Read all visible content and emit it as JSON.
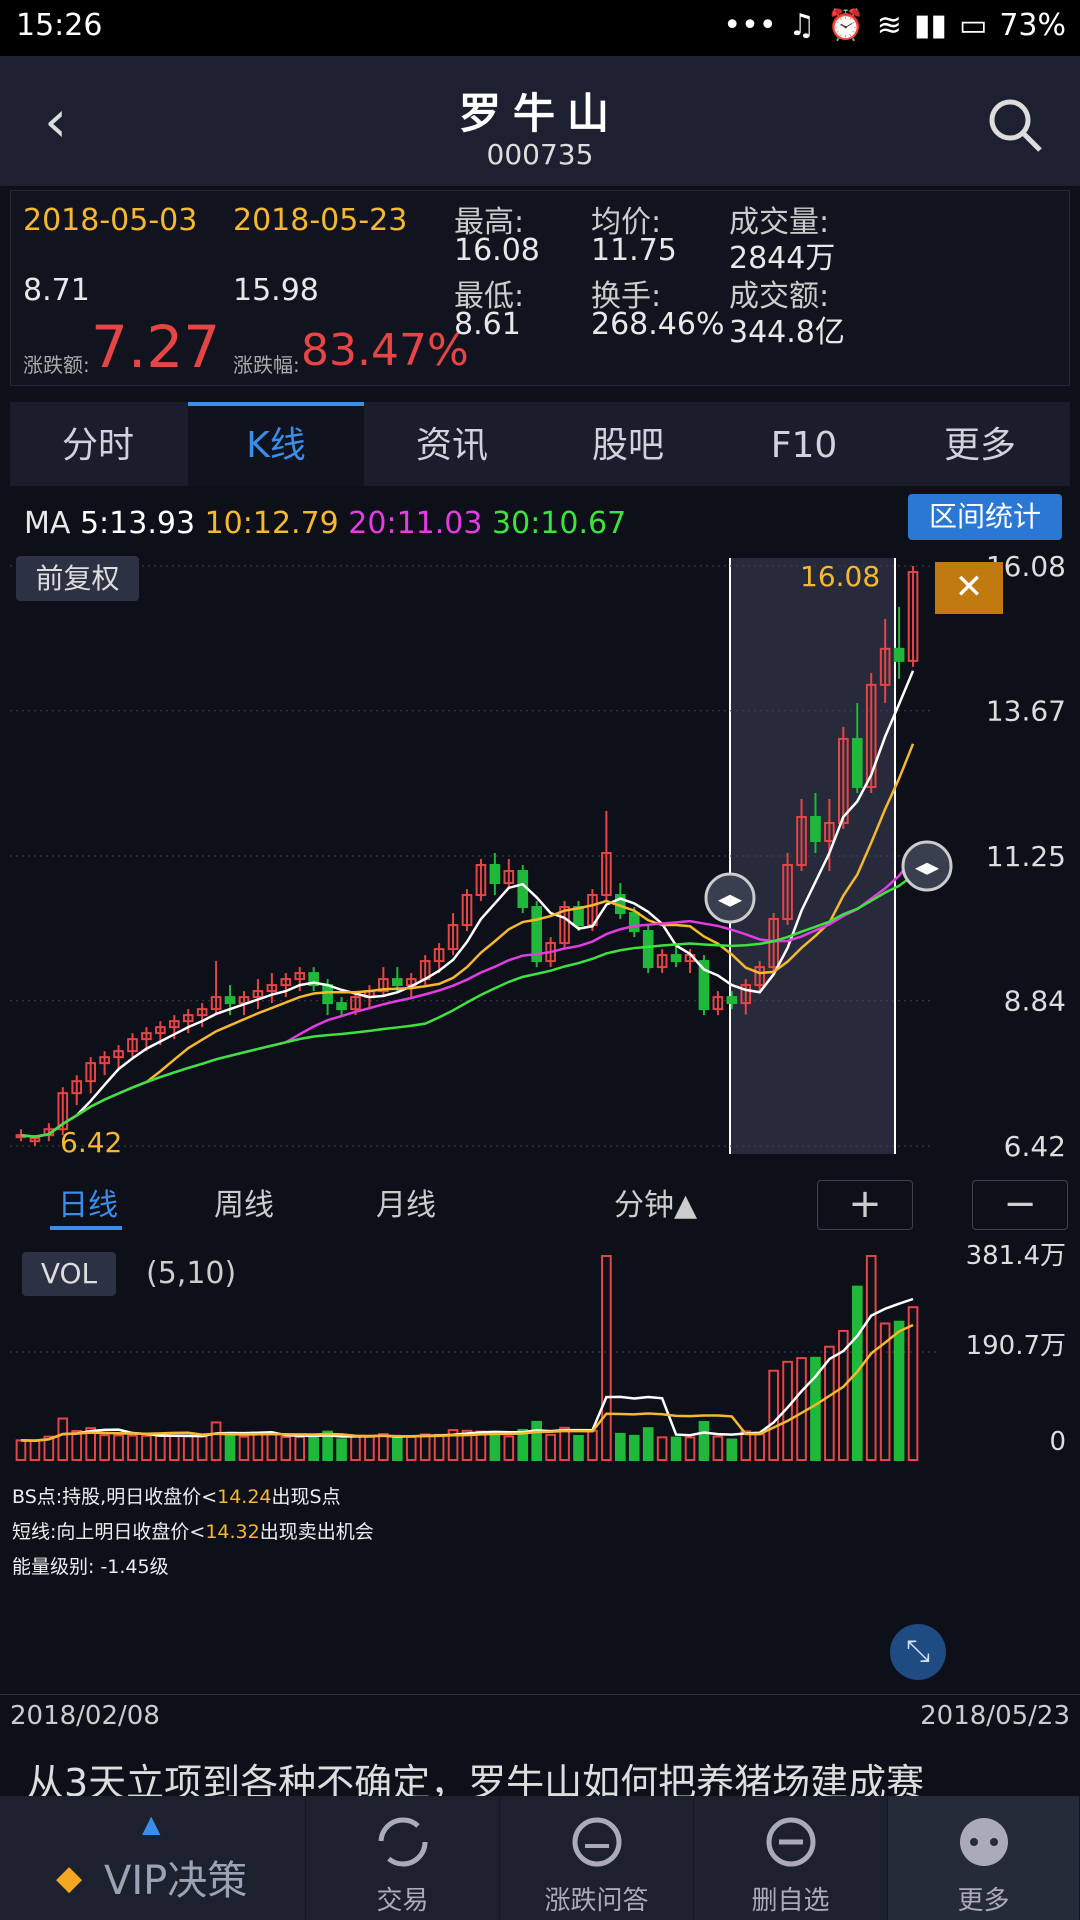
{
  "status": {
    "time": "15:26",
    "battery": "73%"
  },
  "header": {
    "title": "罗牛山",
    "code": "000735"
  },
  "stats": {
    "start_date": "2018-05-03",
    "end_date": "2018-05-23",
    "start_price": "8.71",
    "end_price": "15.98",
    "change_amount_label": "涨跌额:",
    "change_amount": "7.27",
    "change_pct_label": "涨跌幅:",
    "change_pct": "83.47%",
    "high_label": "最高:",
    "high": "16.08",
    "low_label": "最低:",
    "low": "8.61",
    "avg_label": "均价:",
    "avg": "11.75",
    "turnover_label": "换手:",
    "turnover": "268.46%",
    "volume_label": "成交量:",
    "volume": "2844万",
    "amount_label": "成交额:",
    "amount": "344.8亿"
  },
  "tabs": [
    "分时",
    "K线",
    "资讯",
    "股吧",
    "F10",
    "更多"
  ],
  "active_tab": "K线",
  "ma": {
    "label": "MA",
    "ma5": "5:13.93",
    "ma10": "10:12.79",
    "ma20": "20:11.03",
    "ma30": "30:10.67"
  },
  "range_button": "区间统计",
  "adjust_badge": "前复权",
  "price_axis": [
    "16.08",
    "13.67",
    "11.25",
    "8.84",
    "6.42"
  ],
  "hi_marker": "16.08",
  "lo_marker": "6.42",
  "periods": {
    "daily": "日线",
    "weekly": "周线",
    "monthly": "月线",
    "minute": "分钟▲",
    "zoom_in": "+",
    "zoom_out": "−"
  },
  "volume_panel": {
    "badge": "VOL",
    "params": "(5,10)",
    "axis": [
      "381.4万",
      "190.7万",
      "0"
    ]
  },
  "notes": {
    "line1_a": "BS点:持股,明日收盘价<",
    "line1_val": "14.24",
    "line1_b": "出现S点",
    "line2_a": "短线:向上明日收盘价<",
    "line2_val": "14.32",
    "line2_b": "出现卖出机会",
    "line3": "能量级别: -1.45级"
  },
  "date_range": {
    "start": "2018/02/08",
    "end": "2018/05/23"
  },
  "news_headline": "从3天立项到各种不确定，罗牛山如何把养猪场建成赛",
  "bottom_nav": [
    "VIP决策",
    "交易",
    "涨跌问答",
    "删自选",
    "更多"
  ],
  "chart_data": {
    "type": "candlestick",
    "ylim": [
      6.42,
      16.08
    ],
    "ohlc_approx": [
      [
        6.6,
        6.7,
        6.5,
        6.6
      ],
      [
        6.5,
        6.6,
        6.42,
        6.55
      ],
      [
        6.6,
        6.8,
        6.5,
        6.7
      ],
      [
        6.7,
        7.4,
        6.6,
        7.3
      ],
      [
        7.3,
        7.6,
        7.1,
        7.5
      ],
      [
        7.5,
        7.9,
        7.3,
        7.8
      ],
      [
        7.8,
        8.0,
        7.6,
        7.9
      ],
      [
        7.9,
        8.1,
        7.7,
        8.0
      ],
      [
        8.0,
        8.3,
        7.9,
        8.2
      ],
      [
        8.2,
        8.4,
        8.0,
        8.3
      ],
      [
        8.3,
        8.5,
        8.1,
        8.4
      ],
      [
        8.4,
        8.6,
        8.2,
        8.5
      ],
      [
        8.5,
        8.7,
        8.3,
        8.6
      ],
      [
        8.6,
        8.8,
        8.4,
        8.7
      ],
      [
        8.7,
        9.5,
        8.6,
        8.9
      ],
      [
        8.9,
        9.1,
        8.6,
        8.8
      ],
      [
        8.8,
        9.0,
        8.6,
        8.9
      ],
      [
        8.9,
        9.2,
        8.7,
        9.0
      ],
      [
        9.0,
        9.3,
        8.8,
        9.1
      ],
      [
        9.1,
        9.3,
        8.9,
        9.2
      ],
      [
        9.2,
        9.4,
        9.0,
        9.3
      ],
      [
        9.3,
        9.4,
        9.0,
        9.1
      ],
      [
        9.1,
        9.2,
        8.6,
        8.8
      ],
      [
        8.8,
        8.9,
        8.6,
        8.7
      ],
      [
        8.7,
        9.0,
        8.6,
        8.9
      ],
      [
        8.9,
        9.1,
        8.7,
        9.0
      ],
      [
        9.0,
        9.4,
        8.9,
        9.2
      ],
      [
        9.2,
        9.4,
        9.0,
        9.1
      ],
      [
        9.1,
        9.3,
        8.9,
        9.2
      ],
      [
        9.2,
        9.6,
        9.1,
        9.5
      ],
      [
        9.5,
        9.8,
        9.3,
        9.7
      ],
      [
        9.7,
        10.3,
        9.6,
        10.1
      ],
      [
        10.1,
        10.7,
        10.0,
        10.6
      ],
      [
        10.6,
        11.2,
        10.5,
        11.1
      ],
      [
        11.1,
        11.3,
        10.6,
        10.8
      ],
      [
        10.8,
        11.2,
        10.7,
        11.0
      ],
      [
        11.0,
        11.1,
        10.3,
        10.4
      ],
      [
        10.4,
        10.5,
        9.4,
        9.5
      ],
      [
        9.5,
        9.9,
        9.4,
        9.8
      ],
      [
        9.8,
        10.5,
        9.7,
        10.4
      ],
      [
        10.4,
        10.5,
        10.0,
        10.1
      ],
      [
        10.1,
        10.7,
        10.0,
        10.6
      ],
      [
        10.6,
        12.0,
        10.5,
        11.3
      ],
      [
        10.6,
        10.8,
        10.2,
        10.3
      ],
      [
        10.3,
        10.4,
        9.9,
        10.0
      ],
      [
        10.0,
        10.1,
        9.3,
        9.4
      ],
      [
        9.4,
        9.7,
        9.3,
        9.6
      ],
      [
        9.6,
        9.8,
        9.4,
        9.5
      ],
      [
        9.5,
        9.7,
        9.3,
        9.6
      ],
      [
        9.5,
        9.6,
        8.6,
        8.7
      ],
      [
        8.7,
        9.0,
        8.6,
        8.9
      ],
      [
        8.9,
        9.0,
        8.7,
        8.8
      ],
      [
        8.8,
        9.2,
        8.61,
        9.1
      ],
      [
        9.1,
        9.5,
        9.0,
        9.4
      ],
      [
        9.4,
        10.3,
        9.3,
        10.2
      ],
      [
        10.2,
        11.3,
        10.1,
        11.1
      ],
      [
        11.1,
        12.2,
        11.0,
        11.9
      ],
      [
        11.9,
        12.3,
        11.3,
        11.5
      ],
      [
        11.5,
        12.2,
        11.0,
        11.8
      ],
      [
        11.8,
        13.4,
        11.7,
        13.2
      ],
      [
        13.2,
        13.8,
        12.3,
        12.4
      ],
      [
        12.4,
        14.3,
        12.3,
        14.1
      ],
      [
        14.1,
        15.2,
        13.8,
        14.7
      ],
      [
        14.7,
        15.4,
        14.2,
        14.5
      ],
      [
        14.5,
        16.08,
        14.4,
        15.98
      ]
    ]
  }
}
